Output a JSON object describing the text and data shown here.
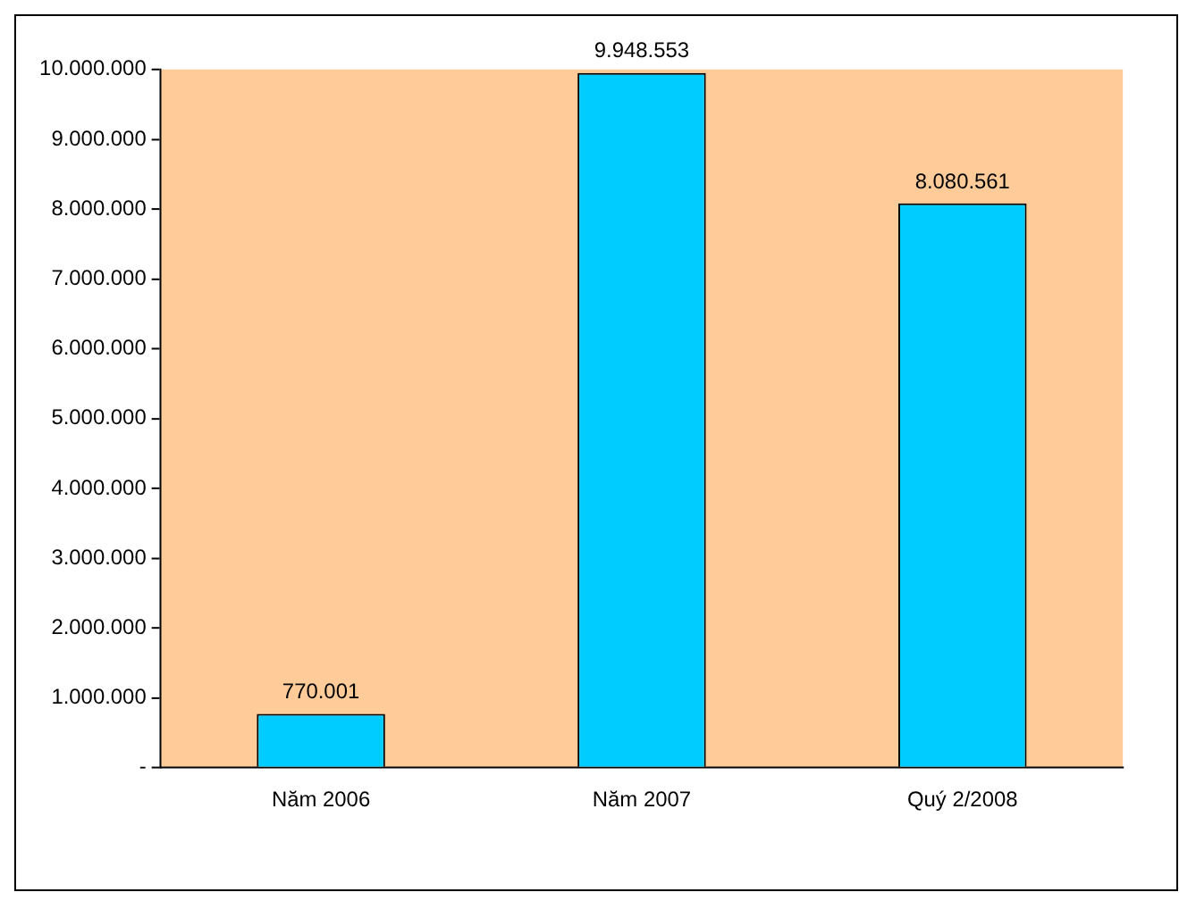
{
  "chart_data": {
    "type": "bar",
    "categories": [
      "Năm 2006",
      "Năm 2007",
      "Quý 2/2008"
    ],
    "values": [
      770001,
      9948553,
      8080561
    ],
    "value_labels": [
      "770.001",
      "9.948.553",
      "8.080.561"
    ],
    "color": "#00ccff",
    "ylim": [
      0,
      10000000
    ],
    "yticks": [
      {
        "value": 0,
        "label": "-"
      },
      {
        "value": 1000000,
        "label": "1.000.000"
      },
      {
        "value": 2000000,
        "label": "2.000.000"
      },
      {
        "value": 3000000,
        "label": "3.000.000"
      },
      {
        "value": 4000000,
        "label": "4.000.000"
      },
      {
        "value": 5000000,
        "label": "5.000.000"
      },
      {
        "value": 6000000,
        "label": "6.000.000"
      },
      {
        "value": 7000000,
        "label": "7.000.000"
      },
      {
        "value": 8000000,
        "label": "8.000.000"
      },
      {
        "value": 9000000,
        "label": "9.000.000"
      },
      {
        "value": 10000000,
        "label": "10.000.000"
      }
    ],
    "grid": false,
    "legend": false
  }
}
